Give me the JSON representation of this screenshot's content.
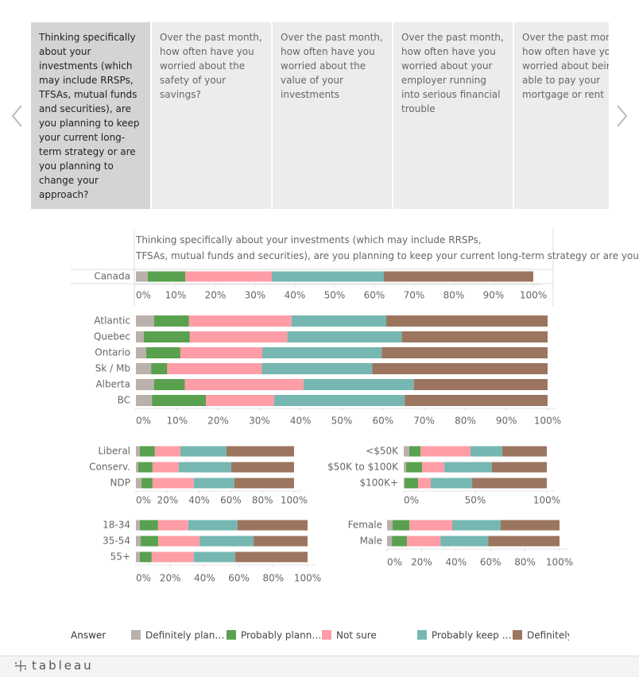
{
  "tabs": [
    "Thinking specifically about your investments (which may include RRSPs, TFSAs, mutual funds and securities), are you planning to keep your current long-term strategy or are you planning to change your approach?",
    "Over the past month, how often have you worried about the safety of your savings?",
    "Over the past month, how often have you worried about the value of your investments",
    "Over the past month, how often have you worried about your employer running into serious financial trouble",
    "Over the past month, how often have you worried about being able to pay your mortgage or rent"
  ],
  "legend": {
    "title": "Answer",
    "items": [
      {
        "name": "Definitely plan…",
        "color": "#bab0ac"
      },
      {
        "name": "Probably plann…",
        "color": "#59a14f"
      },
      {
        "name": "Not sure",
        "color": "#ff9da7"
      },
      {
        "name": "Probably keep …",
        "color": "#76b7b2"
      },
      {
        "name": "Definitely",
        "color": "#9c755f"
      }
    ]
  },
  "footer": {
    "logo": "tableau"
  },
  "chart_data": [
    {
      "type": "stacked-bar",
      "title": "Thinking specifically about your investments (which may include RRSPs, TFSAs, mutual funds and securities), are you planning to keep your current long-term strategy or are you plannin..",
      "categories": [
        "Canada"
      ],
      "series": [
        {
          "values": [
            3
          ]
        },
        {
          "values": [
            9.4
          ]
        },
        {
          "values": [
            21.8
          ]
        },
        {
          "values": [
            28.2
          ]
        },
        {
          "values": [
            37.6
          ]
        }
      ],
      "xlim": [
        0,
        100
      ],
      "xticks": [
        {
          "value": 0,
          "label": "0%"
        },
        {
          "value": 10,
          "label": "10%"
        },
        {
          "value": 20,
          "label": "20%"
        },
        {
          "value": 30,
          "label": "30%"
        },
        {
          "value": 40,
          "label": "40%"
        },
        {
          "value": 50,
          "label": "50%"
        },
        {
          "value": 60,
          "label": "60%"
        },
        {
          "value": 70,
          "label": "70%"
        },
        {
          "value": 80,
          "label": "80%"
        },
        {
          "value": 90,
          "label": "90%"
        },
        {
          "value": 100,
          "label": "100%"
        }
      ]
    },
    {
      "type": "stacked-bar",
      "categories": [
        "Atlantic",
        "Quebec",
        "Ontario",
        "Sk / Mb",
        "Alberta",
        "BC"
      ],
      "series": [
        {
          "values": [
            4.4,
            1.9,
            2.5,
            3.7,
            4.4,
            3.9
          ]
        },
        {
          "values": [
            8.5,
            11.2,
            8.3,
            3.9,
            7.5,
            13.1
          ]
        },
        {
          "values": [
            24.9,
            23.7,
            19.9,
            23.0,
            28.8,
            16.6
          ]
        },
        {
          "values": [
            23.0,
            27.8,
            29.0,
            26.8,
            26.8,
            31.7
          ]
        },
        {
          "values": [
            39.2,
            35.4,
            40.3,
            42.6,
            32.5,
            34.7
          ]
        }
      ],
      "xlim": [
        0,
        100
      ],
      "xticks": [
        {
          "value": 0,
          "label": "0%"
        },
        {
          "value": 10,
          "label": "10%"
        },
        {
          "value": 20,
          "label": "20%"
        },
        {
          "value": 30,
          "label": "30%"
        },
        {
          "value": 40,
          "label": "40%"
        },
        {
          "value": 50,
          "label": "50%"
        },
        {
          "value": 60,
          "label": "60%"
        },
        {
          "value": 70,
          "label": "70%"
        },
        {
          "value": 80,
          "label": "80%"
        },
        {
          "value": 90,
          "label": "90%"
        },
        {
          "value": 100,
          "label": "100%"
        }
      ]
    },
    {
      "type": "stacked-bar",
      "categories": [
        "Liberal",
        "Conserv.",
        "NDP"
      ],
      "series": [
        {
          "values": [
            2.5,
            1.5,
            3.5
          ]
        },
        {
          "values": [
            9.5,
            9.0,
            7.0
          ]
        },
        {
          "values": [
            16.1,
            16.6,
            26.1
          ]
        },
        {
          "values": [
            29.1,
            33.2,
            25.6
          ]
        },
        {
          "values": [
            42.8,
            39.7,
            37.8
          ]
        }
      ],
      "xlim": [
        0,
        100
      ],
      "xticks": [
        {
          "value": 0,
          "label": "0%"
        },
        {
          "value": 20,
          "label": "20%"
        },
        {
          "value": 40,
          "label": "40%"
        },
        {
          "value": 60,
          "label": "60%"
        },
        {
          "value": 80,
          "label": "80%"
        },
        {
          "value": 100,
          "label": "100%"
        }
      ]
    },
    {
      "type": "stacked-bar",
      "categories": [
        "<$50K",
        "$50K to $100K",
        "$100K+"
      ],
      "series": [
        {
          "values": [
            3.9,
            1.7,
            0.6
          ]
        },
        {
          "values": [
            7.8,
            11.1,
            9.4
          ]
        },
        {
          "values": [
            35.0,
            15.6,
            8.9
          ]
        },
        {
          "values": [
            22.2,
            33.3,
            28.9
          ]
        },
        {
          "values": [
            31.1,
            38.3,
            52.2
          ]
        }
      ],
      "xlim": [
        0,
        100
      ],
      "xticks": [
        {
          "value": 0,
          "label": "0%"
        },
        {
          "value": 50,
          "label": "50%"
        },
        {
          "value": 100,
          "label": "100%"
        }
      ]
    },
    {
      "type": "stacked-bar",
      "categories": [
        "18-34",
        "35-54",
        "55+"
      ],
      "series": [
        {
          "values": [
            2.3,
            2.8,
            2.3
          ]
        },
        {
          "values": [
            10.6,
            10.2,
            6.9
          ]
        },
        {
          "values": [
            17.6,
            24.1,
            24.5
          ]
        },
        {
          "values": [
            28.7,
            31.5,
            24.1
          ]
        },
        {
          "values": [
            40.8,
            31.4,
            42.2
          ]
        }
      ],
      "xlim": [
        0,
        100
      ],
      "xticks": [
        {
          "value": 0,
          "label": "0%"
        },
        {
          "value": 20,
          "label": "20%"
        },
        {
          "value": 40,
          "label": "40%"
        },
        {
          "value": 60,
          "label": "60%"
        },
        {
          "value": 80,
          "label": "80%"
        },
        {
          "value": 100,
          "label": "100%"
        }
      ]
    },
    {
      "type": "stacked-bar",
      "categories": [
        "Female",
        "Male"
      ],
      "series": [
        {
          "values": [
            3.2,
            2.8
          ]
        },
        {
          "values": [
            9.7,
            8.8
          ]
        },
        {
          "values": [
            24.9,
            19.4
          ]
        },
        {
          "values": [
            28.1,
            27.6
          ]
        },
        {
          "values": [
            34.1,
            41.4
          ]
        }
      ],
      "xlim": [
        0,
        100
      ],
      "xticks": [
        {
          "value": 0,
          "label": "0%"
        },
        {
          "value": 20,
          "label": "20%"
        },
        {
          "value": 40,
          "label": "40%"
        },
        {
          "value": 60,
          "label": "60%"
        },
        {
          "value": 80,
          "label": "80%"
        },
        {
          "value": 100,
          "label": "100%"
        }
      ]
    }
  ]
}
